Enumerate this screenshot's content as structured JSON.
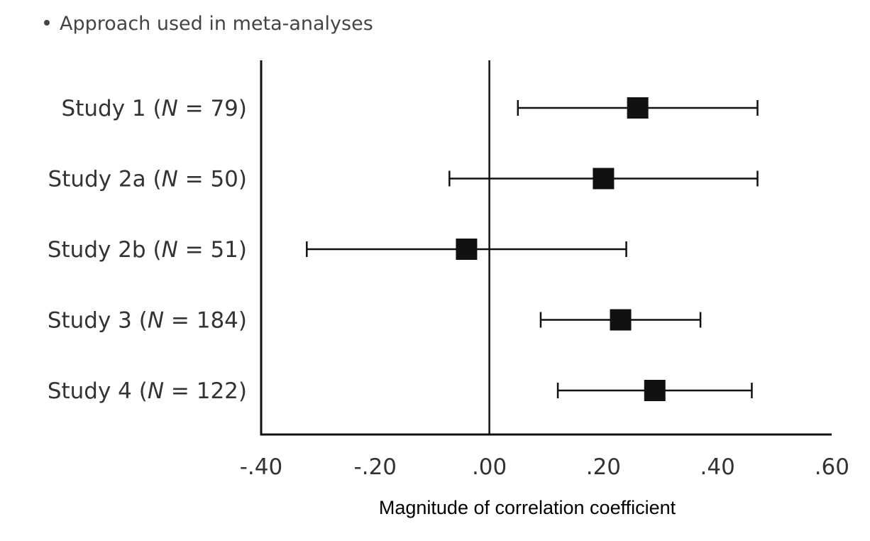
{
  "header": {
    "bullet_text": "Approach used in meta-analyses"
  },
  "chart_data": {
    "type": "forest",
    "xlabel": "Magnitude of correlation coefficient",
    "xlim": [
      -0.4,
      0.6
    ],
    "ticks": [
      {
        "value": -0.4,
        "label": "-.40"
      },
      {
        "value": -0.2,
        "label": "-.20"
      },
      {
        "value": 0.0,
        "label": ".00"
      },
      {
        "value": 0.2,
        "label": ".20"
      },
      {
        "value": 0.4,
        "label": ".40"
      },
      {
        "value": 0.6,
        "label": ".60"
      }
    ],
    "reference_line": 0.0,
    "studies": [
      {
        "name": "Study 1",
        "n": "79",
        "estimate": 0.26,
        "lower": 0.05,
        "upper": 0.47
      },
      {
        "name": "Study 2a",
        "n": "50",
        "estimate": 0.2,
        "lower": -0.07,
        "upper": 0.47
      },
      {
        "name": "Study 2b",
        "n": "51",
        "estimate": -0.04,
        "lower": -0.32,
        "upper": 0.24
      },
      {
        "name": "Study 3",
        "n": "184",
        "estimate": 0.23,
        "lower": 0.09,
        "upper": 0.37
      },
      {
        "name": "Study 4",
        "n": "122",
        "estimate": 0.29,
        "lower": 0.12,
        "upper": 0.46
      }
    ],
    "colors": {
      "marker": "#111111",
      "line": "#111111",
      "text": "#333333"
    }
  }
}
